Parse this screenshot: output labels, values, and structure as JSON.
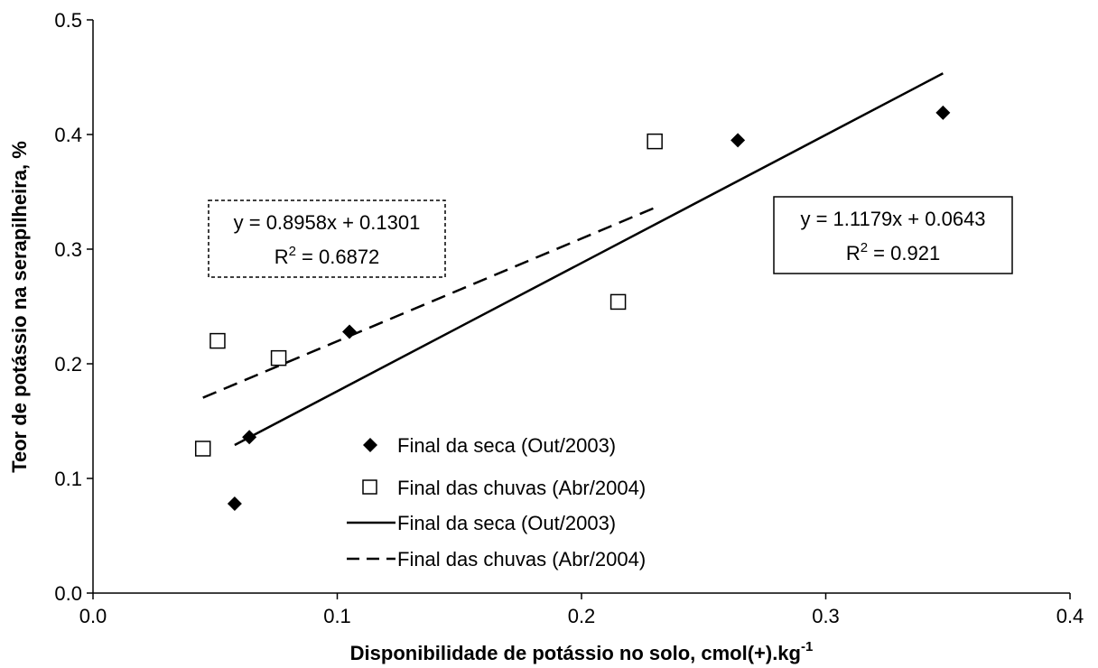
{
  "chart_data": {
    "type": "scatter",
    "xlabel": "Disponibilidade de potássio no solo, cmol(+).kg",
    "xlabel_sup": "-1",
    "ylabel": "Teor de potássio na serapilheira, %",
    "xlim": [
      0,
      0.4
    ],
    "ylim": [
      0,
      0.5
    ],
    "x_ticks": [
      "0.0",
      "0.1",
      "0.2",
      "0.3",
      "0.4"
    ],
    "y_ticks": [
      "0.0",
      "0.1",
      "0.2",
      "0.3",
      "0.4",
      "0.5"
    ],
    "series": [
      {
        "name": "Final da seca (Out/2003)",
        "marker": "diamond-filled",
        "points": [
          [
            0.058,
            0.078
          ],
          [
            0.064,
            0.136
          ],
          [
            0.105,
            0.228
          ],
          [
            0.264,
            0.395
          ],
          [
            0.348,
            0.419
          ]
        ]
      },
      {
        "name": "Final das chuvas (Abr/2004)",
        "marker": "square-open",
        "points": [
          [
            0.045,
            0.126
          ],
          [
            0.051,
            0.22
          ],
          [
            0.076,
            0.205
          ],
          [
            0.215,
            0.254
          ],
          [
            0.23,
            0.394
          ]
        ]
      }
    ],
    "trendlines": [
      {
        "name": "Final da seca (Out/2003)",
        "style": "solid",
        "slope": 1.1179,
        "intercept": 0.0643,
        "x_range": [
          0.058,
          0.348
        ],
        "equation": "y = 1.1179x + 0.0643",
        "r2_prefix": "R",
        "r2_sup": "2",
        "r2_value": " = 0.921"
      },
      {
        "name": "Final das chuvas (Abr/2004)",
        "style": "dashed",
        "slope": 0.8958,
        "intercept": 0.1301,
        "x_range": [
          0.045,
          0.23
        ],
        "equation": "y = 0.8958x + 0.1301",
        "r2_prefix": "R",
        "r2_sup": "2",
        "r2_value": " = 0.6872"
      }
    ],
    "legend": {
      "placement": "lower-center",
      "entries": [
        "Final da seca (Out/2003)",
        "Final das chuvas (Abr/2004)",
        "Final da seca (Out/2003)",
        "Final das chuvas (Abr/2004)"
      ]
    },
    "grid": false
  }
}
